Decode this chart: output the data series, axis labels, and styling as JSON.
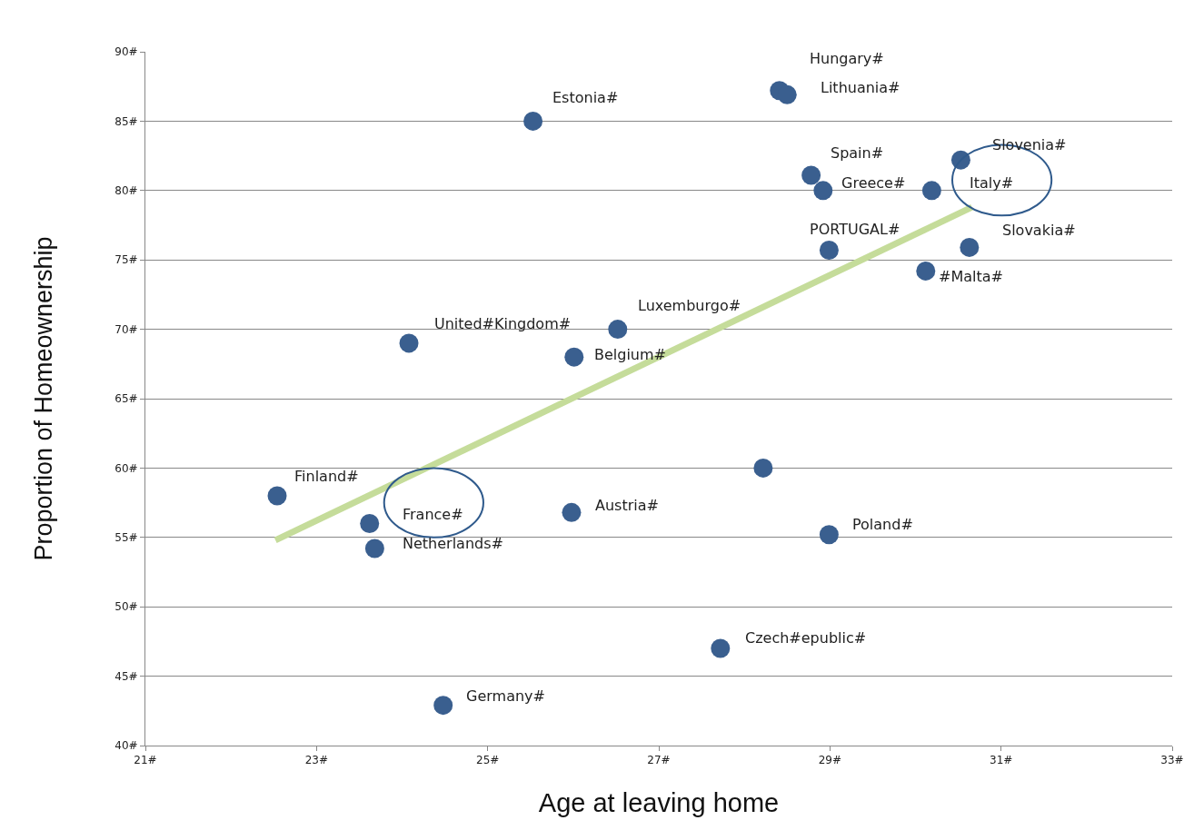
{
  "chart_data": {
    "type": "scatter",
    "xlabel": "Age at leaving home",
    "ylabel": "Proportion of Homeownership",
    "xlim": [
      21,
      33
    ],
    "xticks": [
      {
        "value": 21,
        "label": "21#"
      },
      {
        "value": 23,
        "label": "23#"
      },
      {
        "value": 25,
        "label": "25#"
      },
      {
        "value": 27,
        "label": "27#"
      },
      {
        "value": 29,
        "label": "29#"
      },
      {
        "value": 31,
        "label": "31#"
      },
      {
        "value": 33,
        "label": "33#"
      }
    ],
    "ylim": [
      40,
      90
    ],
    "yticks": [
      {
        "value": 40,
        "label": "40#"
      },
      {
        "value": 45,
        "label": "45#"
      },
      {
        "value": 50,
        "label": "50#"
      },
      {
        "value": 55,
        "label": "55#"
      },
      {
        "value": 60,
        "label": "60#"
      },
      {
        "value": 65,
        "label": "65#"
      },
      {
        "value": 70,
        "label": "70#"
      },
      {
        "value": 75,
        "label": "75#"
      },
      {
        "value": 80,
        "label": "80#"
      },
      {
        "value": 85,
        "label": "85#"
      },
      {
        "value": 90,
        "label": "90#"
      }
    ],
    "grid": "y",
    "series": [
      {
        "marker": "circle",
        "color": "#3a5f8f",
        "x": [
          25.53,
          28.41,
          28.5,
          28.78,
          28.92,
          30.53,
          30.19,
          30.63,
          28.99,
          30.12,
          26.52,
          24.08,
          26.01,
          22.54,
          25.98,
          23.62,
          23.68,
          28.99,
          27.72,
          24.48,
          28.22
        ],
        "values": [
          85,
          87.2,
          86.9,
          81.1,
          80,
          82.2,
          80,
          75.9,
          75.7,
          74.2,
          70,
          69,
          68,
          58,
          56.8,
          56,
          54.2,
          55.2,
          47,
          42.9,
          60
        ]
      },
      {
        "type": "line",
        "marker": "none",
        "color": "#c5dc9a",
        "x": [
          22.52,
          30.66
        ],
        "values": [
          54.8,
          78.8
        ]
      }
    ],
    "annotations": [
      {
        "text": "Estonia#",
        "x": 25.53,
        "y": 85
      },
      {
        "text": "Hungary#",
        "x": 28.41,
        "y": 87.2
      },
      {
        "text": "Lithuania#",
        "x": 28.5,
        "y": 86.9
      },
      {
        "text": "Spain#",
        "x": 28.78,
        "y": 81.1
      },
      {
        "text": "Greece#",
        "x": 28.92,
        "y": 80
      },
      {
        "text": "Slovenia#",
        "x": 30.53,
        "y": 82.2
      },
      {
        "text": "Italy#",
        "x": 30.19,
        "y": 80
      },
      {
        "text": "Slovakia#",
        "x": 30.63,
        "y": 75.9
      },
      {
        "text": "PORTUGAL#",
        "x": 28.99,
        "y": 75.7
      },
      {
        "text": "#Malta#",
        "x": 30.12,
        "y": 74.2
      },
      {
        "text": "Luxemburgo#",
        "x": 26.52,
        "y": 70
      },
      {
        "text": "United#Kingdom#",
        "x": 24.08,
        "y": 69
      },
      {
        "text": "Belgium#",
        "x": 26.01,
        "y": 68
      },
      {
        "text": "Finland#",
        "x": 22.54,
        "y": 58
      },
      {
        "text": "Austria#",
        "x": 25.98,
        "y": 56.8
      },
      {
        "text": "France#",
        "x": 23.62,
        "y": 56
      },
      {
        "text": "Netherlands#",
        "x": 23.68,
        "y": 54.2
      },
      {
        "text": "Poland#",
        "x": 28.99,
        "y": 55.2
      },
      {
        "text": "Czech#epublic#",
        "x": 27.72,
        "y": 47
      },
      {
        "text": "Germany#",
        "x": 24.48,
        "y": 42.9
      }
    ]
  }
}
